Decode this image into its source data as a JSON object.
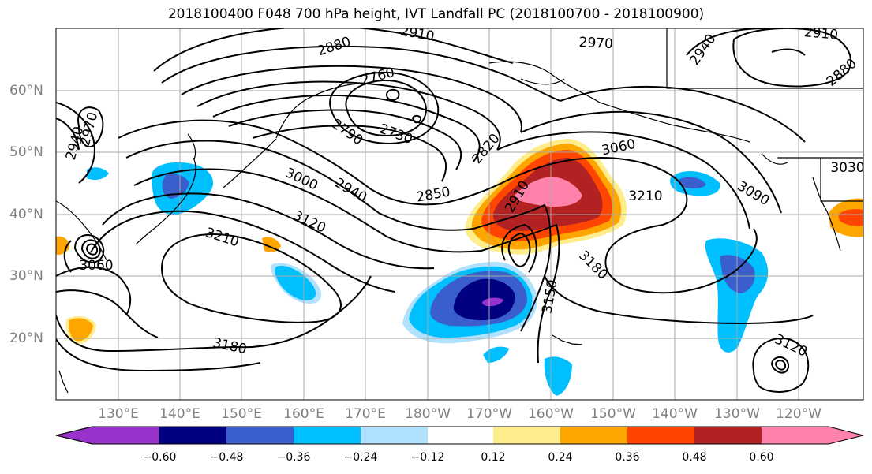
{
  "title": "2018100400 F048 700 hPa height, IVT Landfall PC (2018100700 - 2018100900)",
  "longitude_labels": [
    "130°E",
    "140°E",
    "150°E",
    "160°E",
    "170°E",
    "180°W",
    "170°W",
    "160°W",
    "150°W",
    "140°W",
    "130°W",
    "120°W"
  ],
  "latitude_labels": [
    "60°N",
    "50°N",
    "40°N",
    "30°N",
    "20°N"
  ],
  "colorbar": {
    "ticks": [
      "−0.60",
      "−0.48",
      "−0.36",
      "−0.24",
      "−0.12",
      "0.12",
      "0.24",
      "0.36",
      "0.48",
      "0.60"
    ],
    "colors": [
      "#9932cc",
      "#000080",
      "#3a5fcd",
      "#00bfff",
      "#b0e2ff",
      "#ffffff",
      "#ffec8b",
      "#ffa500",
      "#ff4500",
      "#b22222",
      "#ff82ab"
    ]
  },
  "contour_labels": [
    "2910",
    "2880",
    "2970",
    "2940",
    "2910",
    "2880",
    "2760",
    "2730",
    "2790",
    "2820",
    "2850",
    "2970",
    "2940",
    "3000",
    "2940",
    "3120",
    "3210",
    "3060",
    "2910",
    "3060",
    "3210",
    "3090",
    "3030",
    "3180",
    "3150",
    "3180",
    "3120"
  ]
}
